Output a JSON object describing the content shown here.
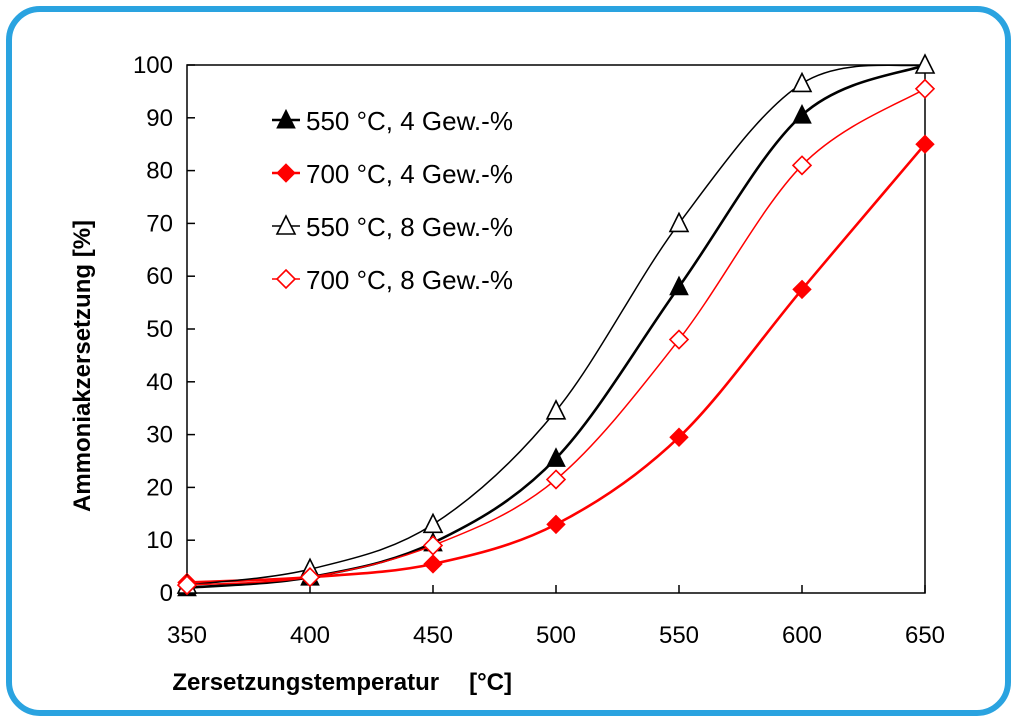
{
  "frame": {
    "border_color": "#2aa3e0"
  },
  "chart_data": {
    "type": "line",
    "title": "",
    "xlabel": "Zersetzungstemperatur",
    "xunit": "[°C]",
    "ylabel": "Ammoniakzersetzung [%]",
    "xlim": [
      350,
      650
    ],
    "ylim": [
      0,
      100
    ],
    "xticks": [
      "350",
      "400",
      "450",
      "500",
      "550",
      "600",
      "650"
    ],
    "yticks": [
      "0",
      "10",
      "20",
      "30",
      "40",
      "50",
      "60",
      "70",
      "80",
      "90",
      "100"
    ],
    "grid": false,
    "legend_position": "top-left",
    "series": [
      {
        "name": "550 °C, 4 Gew.-%",
        "color": "#000000",
        "marker": "triangle-filled",
        "x": [
          350,
          400,
          450,
          500,
          550,
          600,
          650
        ],
        "y": [
          1,
          3,
          9.5,
          25.5,
          58,
          90.5,
          100
        ]
      },
      {
        "name": "700 °C, 4 Gew.-%",
        "color": "#ff0000",
        "marker": "diamond-filled",
        "x": [
          350,
          400,
          450,
          500,
          550,
          600,
          650
        ],
        "y": [
          2,
          3,
          5.5,
          13,
          29.5,
          57.5,
          85
        ]
      },
      {
        "name": "550 °C, 8 Gew.-%",
        "color": "#000000",
        "marker": "triangle-open",
        "x": [
          350,
          400,
          450,
          500,
          550,
          600,
          650
        ],
        "y": [
          1.5,
          4.5,
          13,
          34.5,
          70,
          96.5,
          100
        ]
      },
      {
        "name": "700 °C, 8 Gew.-%",
        "color": "#ff0000",
        "marker": "diamond-open",
        "x": [
          350,
          400,
          450,
          500,
          550,
          600,
          650
        ],
        "y": [
          1.5,
          3,
          9,
          21.5,
          48,
          81,
          95.5
        ]
      }
    ]
  }
}
